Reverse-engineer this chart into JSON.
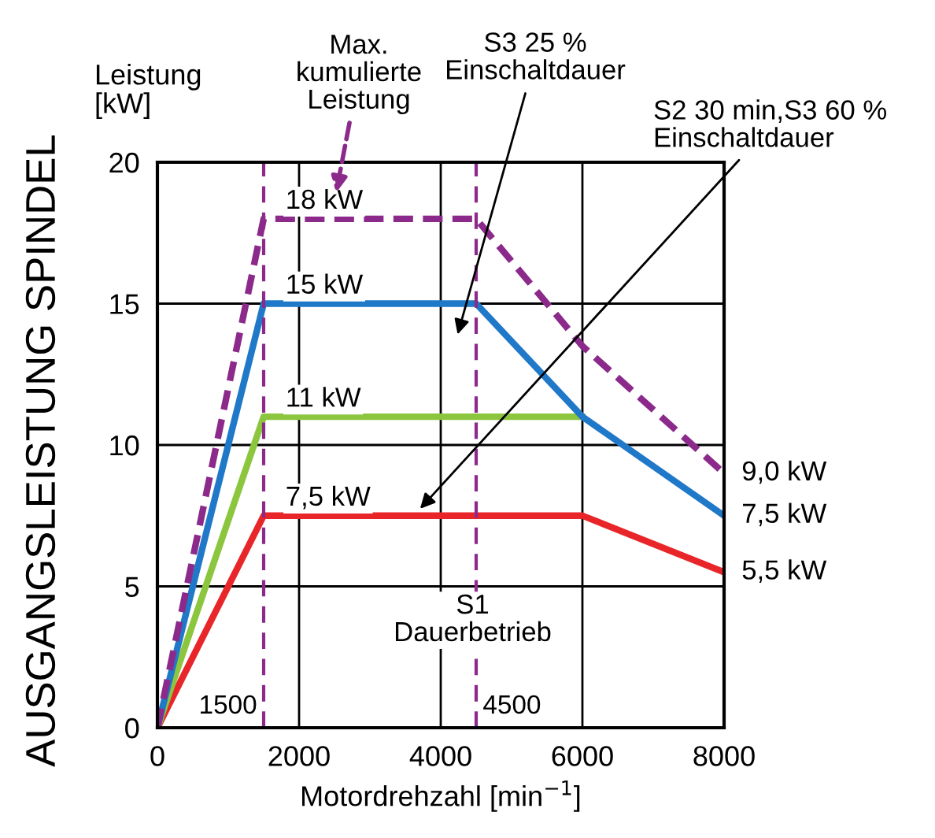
{
  "chart_data": {
    "type": "line",
    "title": "AUSGANGSLEISTUNG SPINDEL",
    "ylabel": "Leistung\n[kW]",
    "xlabel": "Motordrehzahl [min$^{−1}$]",
    "xlim": [
      0,
      8000
    ],
    "xticks": [
      0,
      2000,
      4000,
      6000,
      8000
    ],
    "ylim": [
      0,
      20
    ],
    "yticks": [
      0,
      5,
      10,
      15,
      20
    ],
    "grid": true,
    "marker": "none",
    "series": [
      {
        "color": "#8b2a8b",
        "line_style": "dashed",
        "x": [
          0,
          1500,
          4500,
          6000,
          8000
        ],
        "values": [
          0,
          18,
          18,
          13.5,
          9
        ]
      },
      {
        "color": "#1f78c8",
        "x": [
          0,
          1500,
          4500,
          6000,
          8000
        ],
        "values": [
          0,
          15,
          15,
          11,
          7.5
        ]
      },
      {
        "color": "#8cc63f",
        "x": [
          0,
          1500,
          6000
        ],
        "values": [
          0,
          11,
          11
        ]
      },
      {
        "color": "#e8262a",
        "x": [
          0,
          1500,
          6000,
          8000
        ],
        "values": [
          0,
          7.5,
          7.5,
          5.5
        ]
      }
    ],
    "ref_lines": [
      {
        "axis": "x",
        "value": 1500,
        "label": "1500",
        "color": "#8b2a8b",
        "line_style": "dashed"
      },
      {
        "axis": "x",
        "value": 4500,
        "label": "4500",
        "color": "#8b2a8b",
        "line_style": "dashed"
      }
    ],
    "annotations": [
      {
        "text": "18 kW",
        "x": 1500,
        "y": 18
      },
      {
        "text": "15 kW",
        "x": 1500,
        "y": 15
      },
      {
        "text": "11 kW",
        "x": 1500,
        "y": 11
      },
      {
        "text": "7,5 kW",
        "x": 1500,
        "y": 7.5
      },
      {
        "text": "9,0 kW",
        "x": 8000,
        "y": 9
      },
      {
        "text": "7,5 kW",
        "x": 8000,
        "y": 7.5
      },
      {
        "text": "5,5 kW",
        "x": 8000,
        "y": 5.5
      },
      "Max.\nkumulierte\nLeistung",
      "S3 25 %\nEinschaltdauer",
      "S2 30 min,S3 60 %\nEinschaltdauer",
      {
        "text": "S1\nDauerbetrieb",
        "x": 4450,
        "y": 3.8
      }
    ]
  }
}
